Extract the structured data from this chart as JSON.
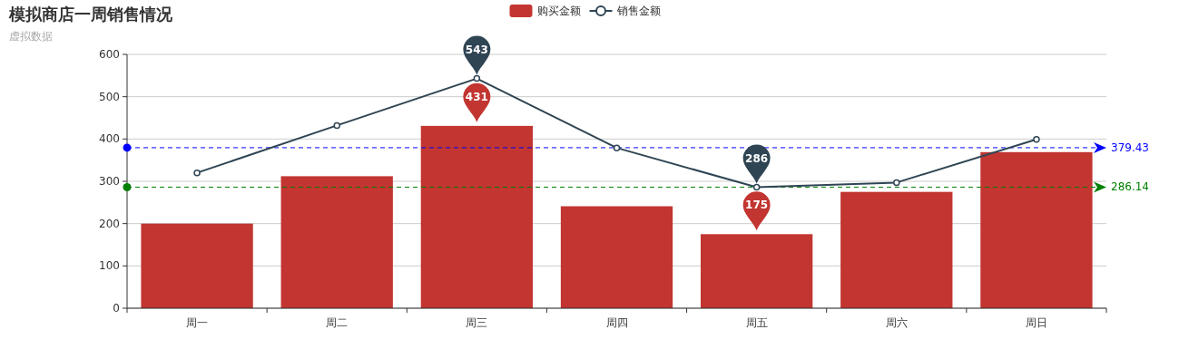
{
  "chart_data": {
    "type": "bar",
    "title": "模拟商店一周销售情况",
    "subtitle": "虚拟数据",
    "categories": [
      "周一",
      "周二",
      "周三",
      "周四",
      "周五",
      "周六",
      "周日"
    ],
    "series": [
      {
        "name": "购买金额",
        "color": "#c23531",
        "values": [
          200,
          312,
          431,
          241,
          175,
          275,
          369
        ]
      },
      {
        "name": "销售金额",
        "type": "line",
        "color": "#2f4554",
        "marker": "circle",
        "values": [
          320,
          432,
          543,
          379,
          286,
          297,
          399
        ]
      }
    ],
    "ylim": [
      0,
      600
    ],
    "yticks": [
      0,
      100,
      200,
      300,
      400,
      500,
      600
    ],
    "grid": "y",
    "legend": "top",
    "ref_lines": [
      {
        "axis": "y",
        "value": 379.43,
        "label": "379.43",
        "color": "#0000ff",
        "line_style": "dashed"
      },
      {
        "axis": "y",
        "value": 286.14,
        "label": "286.14",
        "color": "#008000",
        "line_style": "dashed"
      }
    ],
    "annotations": [
      {
        "text": "543",
        "x": "周三",
        "y": 543
      },
      {
        "text": "431",
        "x": "周三",
        "y": 431
      },
      {
        "text": "286",
        "x": "周五",
        "y": 286
      },
      {
        "text": "175",
        "x": "周五",
        "y": 175
      }
    ]
  }
}
